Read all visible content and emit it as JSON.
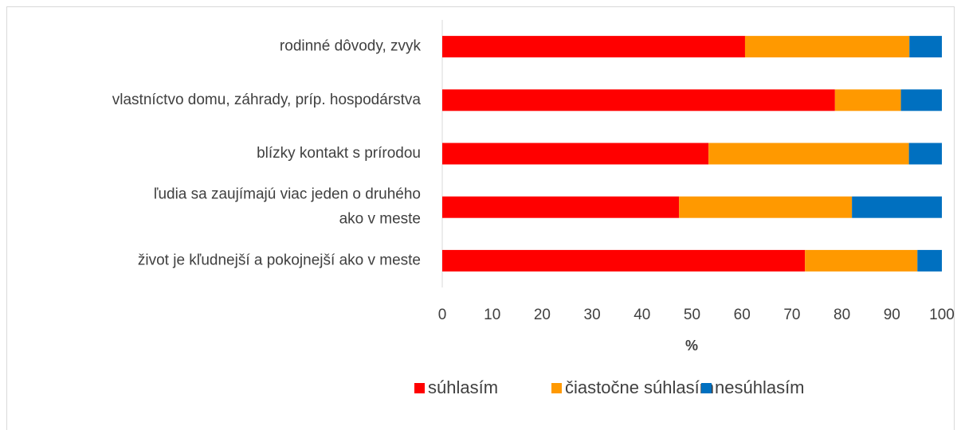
{
  "chart_data": {
    "type": "stacked_barh",
    "categories": [
      "rodinné dôvody, zvyk",
      "vlastníctvo domu, záhrady, príp. hospodárstva",
      "blízky kontakt s prírodou",
      "ľudia sa zaujímajú viac jeden o druhého\nako v meste",
      "život je kľudnejší a pokojnejší ako v meste"
    ],
    "series": [
      {
        "name": "súhlasím",
        "color": "#ff0000",
        "values": [
          60.6,
          78.6,
          53.3,
          47.4,
          72.6
        ]
      },
      {
        "name": "čiastočne súhlasím",
        "color": "#ff9900",
        "values": [
          32.9,
          13.2,
          40.1,
          34.6,
          22.5
        ]
      },
      {
        "name": "nesúhlasím",
        "color": "#0070c0",
        "values": [
          6.5,
          8.2,
          6.6,
          18.0,
          4.9
        ]
      }
    ],
    "xlabel": "%",
    "xlim": [
      0,
      100
    ],
    "xticks": [
      0,
      10,
      20,
      30,
      40,
      50,
      60,
      70,
      80,
      90,
      100
    ],
    "grid": false,
    "legend": "bottom"
  }
}
